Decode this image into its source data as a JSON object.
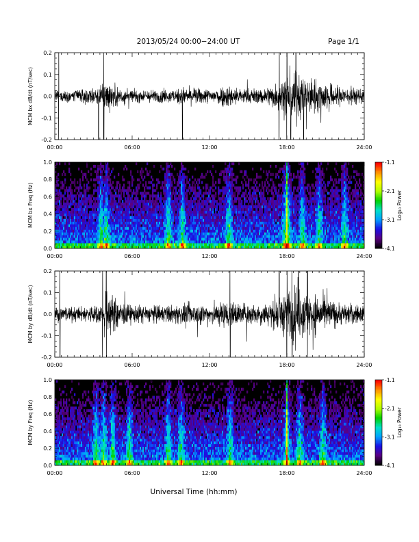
{
  "header": {
    "title": "2013/05/24  00:00−24:00 UT",
    "page": "Page 1/1"
  },
  "xaxis": {
    "title": "Universal Time (hh:mm)",
    "range_hours": [
      0,
      24
    ],
    "ticks": [
      "00:00",
      "06:00",
      "12:00",
      "18:00",
      "24:00"
    ]
  },
  "colorbar": {
    "label": "Log₁₀ Power",
    "range": [
      -4.1,
      -1.1
    ],
    "ticks": [
      "-1.1",
      "-2.1",
      "-3.1",
      "-4.1"
    ],
    "colors": [
      "#000000",
      "#5a0082",
      "#1a10e6",
      "#00a0ff",
      "#00e0c8",
      "#00d000",
      "#b0ff00",
      "#ffff00",
      "#ff9000",
      "#ff0000"
    ]
  },
  "chart_data": [
    {
      "type": "line",
      "id": "bx-dbdt",
      "ylabel": "MCM bx dB/dt (nT/sec)",
      "ylim": [
        -0.2,
        0.2
      ],
      "yticks": [
        "0.2",
        "0.1",
        "0.0",
        "-0.1",
        "-0.2"
      ],
      "xlim": [
        0,
        24
      ],
      "noise_envelope": {
        "hours": [
          0,
          2,
          3.3,
          3.8,
          4.5,
          6,
          9,
          10,
          12,
          13.5,
          14,
          16,
          17.5,
          18.2,
          19,
          20.5,
          22,
          24
        ],
        "amplitude": [
          0.04,
          0.045,
          0.06,
          0.12,
          0.08,
          0.04,
          0.045,
          0.06,
          0.05,
          0.08,
          0.06,
          0.05,
          0.1,
          0.2,
          0.15,
          0.11,
          0.07,
          0.05
        ]
      },
      "spikes_hours": [
        0.3,
        3.4,
        3.8,
        9.9,
        17.4,
        18.0,
        18.3,
        18.7,
        19.3
      ]
    },
    {
      "type": "heatmap",
      "id": "bx-spectrogram",
      "ylabel": "MCM bx Freq (Hz)",
      "ylim": [
        0.0,
        1.0
      ],
      "yticks": [
        "1.0",
        "0.8",
        "0.6",
        "0.4",
        "0.2",
        "0.0"
      ],
      "xlim": [
        0,
        24
      ],
      "activity_bursts_hours": [
        3.6,
        4.0,
        8.8,
        9.9,
        13.5,
        17.9,
        18.1,
        19.2,
        20.5,
        22.5
      ],
      "strong_line_hour": 18.0
    },
    {
      "type": "line",
      "id": "by-dbdt",
      "ylabel": "MCM by dB/dt (nT/sec)",
      "ylim": [
        -0.2,
        0.2
      ],
      "yticks": [
        "0.2",
        "0.1",
        "0.0",
        "-0.1",
        "-0.2"
      ],
      "xlim": [
        0,
        24
      ],
      "noise_envelope": {
        "hours": [
          0,
          2,
          3.5,
          4.0,
          4.8,
          6,
          9,
          10,
          12,
          13.5,
          14.2,
          16,
          17.5,
          18.2,
          19,
          20.5,
          22,
          24
        ],
        "amplitude": [
          0.05,
          0.05,
          0.07,
          0.16,
          0.1,
          0.06,
          0.06,
          0.07,
          0.07,
          0.1,
          0.08,
          0.07,
          0.12,
          0.2,
          0.18,
          0.13,
          0.08,
          0.06
        ]
      },
      "spikes_hours": [
        0.4,
        3.7,
        4.0,
        13.6,
        17.4,
        18.0,
        18.4,
        18.9,
        19.6
      ]
    },
    {
      "type": "heatmap",
      "id": "by-spectrogram",
      "ylabel": "MCM by Freq (Hz)",
      "ylim": [
        0.0,
        1.0
      ],
      "yticks": [
        "1.0",
        "0.8",
        "0.6",
        "0.4",
        "0.2",
        "0.0"
      ],
      "xlim": [
        0,
        24
      ],
      "activity_bursts_hours": [
        3.2,
        3.8,
        4.5,
        5.8,
        8.8,
        9.8,
        13.6,
        18.0,
        19.0,
        20.8
      ],
      "strong_line_hour": 18.0
    }
  ]
}
